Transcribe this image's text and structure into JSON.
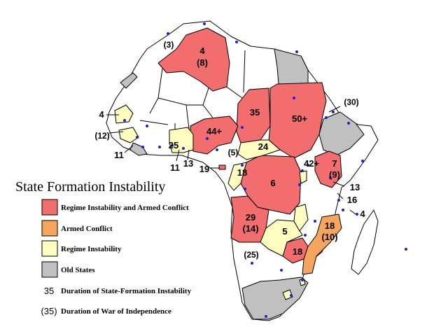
{
  "legend": {
    "title": "State Formation Instability",
    "items": [
      {
        "key": "regime_armed",
        "label": "Regime Instability and Armed Conflict",
        "color": "#f26d6d"
      },
      {
        "key": "armed",
        "label": "Armed Conflict",
        "color": "#f6a55e"
      },
      {
        "key": "regime",
        "label": "Regime Instability",
        "color": "#fffcbf"
      },
      {
        "key": "old",
        "label": "Old States",
        "color": "#c0c0c0"
      }
    ],
    "duration_sample": "35",
    "duration_label": "Duration of State-Formation Instability",
    "war_sample": "(35)",
    "war_label": "Duration of War of Independence"
  },
  "map_labels": {
    "algeria_a": "4",
    "algeria_b": "(8)",
    "morocco": "(3)",
    "chad": "35",
    "sudan": "50+",
    "eritrea": "(30)",
    "nigeria": "44+",
    "senegal": "4",
    "guinea_bissau": "(12)",
    "sierra_leone": "11",
    "ghana_region": "25",
    "togo": "11",
    "benin": "13",
    "car": "24",
    "cameroon": "(5)",
    "eq_guinea": "19",
    "congo": "18",
    "drc": "6",
    "rwanda": "42+",
    "uganda_a": "7",
    "uganda_b": "(9)",
    "kenya": "13",
    "tanzania": "16",
    "comoros": "4",
    "angola_a": "29",
    "angola_b": "(14)",
    "zambia": "5",
    "mozambique_a": "18",
    "mozambique_b": "(10)",
    "zimbabwe": "18",
    "namibia": "(25)"
  }
}
